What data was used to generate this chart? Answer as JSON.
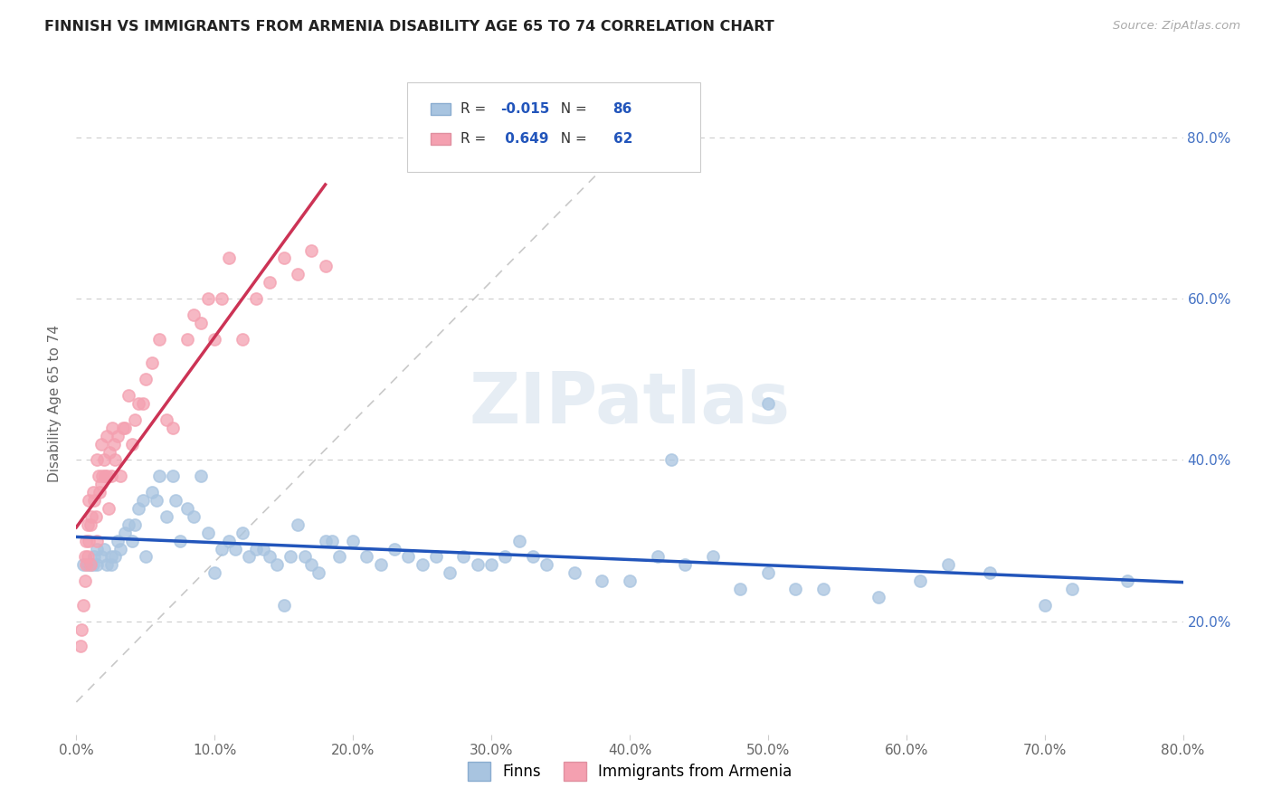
{
  "title": "FINNISH VS IMMIGRANTS FROM ARMENIA DISABILITY AGE 65 TO 74 CORRELATION CHART",
  "source": "Source: ZipAtlas.com",
  "ylabel": "Disability Age 65 to 74",
  "legend_label1": "Finns",
  "legend_label2": "Immigrants from Armenia",
  "r1": -0.015,
  "n1": 86,
  "r2": 0.649,
  "n2": 62,
  "color_finns": "#a8c4e0",
  "color_armenia": "#f4a0b0",
  "line_color_finns": "#2255bb",
  "line_color_armenia": "#cc3355",
  "watermark": "ZIPatlas",
  "xmin": 0.0,
  "xmax": 0.8,
  "ymin": 0.06,
  "ymax": 0.88,
  "yticks": [
    0.2,
    0.4,
    0.6,
    0.8
  ],
  "xticks": [
    0.0,
    0.1,
    0.2,
    0.3,
    0.4,
    0.5,
    0.6,
    0.7,
    0.8
  ],
  "finns_x": [
    0.005,
    0.008,
    0.01,
    0.012,
    0.013,
    0.015,
    0.015,
    0.018,
    0.02,
    0.022,
    0.025,
    0.025,
    0.028,
    0.03,
    0.032,
    0.035,
    0.038,
    0.04,
    0.042,
    0.045,
    0.048,
    0.05,
    0.055,
    0.058,
    0.06,
    0.065,
    0.07,
    0.072,
    0.075,
    0.08,
    0.085,
    0.09,
    0.095,
    0.1,
    0.105,
    0.11,
    0.115,
    0.12,
    0.125,
    0.13,
    0.135,
    0.14,
    0.145,
    0.15,
    0.155,
    0.16,
    0.165,
    0.17,
    0.175,
    0.18,
    0.185,
    0.19,
    0.2,
    0.21,
    0.22,
    0.23,
    0.24,
    0.25,
    0.26,
    0.27,
    0.28,
    0.29,
    0.3,
    0.31,
    0.32,
    0.33,
    0.34,
    0.36,
    0.38,
    0.4,
    0.42,
    0.44,
    0.46,
    0.48,
    0.5,
    0.52,
    0.54,
    0.58,
    0.61,
    0.63,
    0.66,
    0.7,
    0.72,
    0.76,
    0.5,
    0.43
  ],
  "finns_y": [
    0.27,
    0.27,
    0.27,
    0.27,
    0.28,
    0.29,
    0.27,
    0.28,
    0.29,
    0.27,
    0.27,
    0.28,
    0.28,
    0.3,
    0.29,
    0.31,
    0.32,
    0.3,
    0.32,
    0.34,
    0.35,
    0.28,
    0.36,
    0.35,
    0.38,
    0.33,
    0.38,
    0.35,
    0.3,
    0.34,
    0.33,
    0.38,
    0.31,
    0.26,
    0.29,
    0.3,
    0.29,
    0.31,
    0.28,
    0.29,
    0.29,
    0.28,
    0.27,
    0.22,
    0.28,
    0.32,
    0.28,
    0.27,
    0.26,
    0.3,
    0.3,
    0.28,
    0.3,
    0.28,
    0.27,
    0.29,
    0.28,
    0.27,
    0.28,
    0.26,
    0.28,
    0.27,
    0.27,
    0.28,
    0.3,
    0.28,
    0.27,
    0.26,
    0.25,
    0.25,
    0.28,
    0.27,
    0.28,
    0.24,
    0.26,
    0.24,
    0.24,
    0.23,
    0.25,
    0.27,
    0.26,
    0.22,
    0.24,
    0.25,
    0.47,
    0.4
  ],
  "armenia_x": [
    0.003,
    0.004,
    0.005,
    0.006,
    0.006,
    0.007,
    0.007,
    0.008,
    0.008,
    0.009,
    0.009,
    0.01,
    0.01,
    0.011,
    0.012,
    0.013,
    0.014,
    0.015,
    0.015,
    0.016,
    0.017,
    0.018,
    0.018,
    0.019,
    0.02,
    0.021,
    0.022,
    0.022,
    0.023,
    0.024,
    0.025,
    0.026,
    0.027,
    0.028,
    0.03,
    0.032,
    0.034,
    0.035,
    0.038,
    0.04,
    0.042,
    0.045,
    0.048,
    0.05,
    0.055,
    0.06,
    0.065,
    0.07,
    0.08,
    0.085,
    0.09,
    0.095,
    0.1,
    0.105,
    0.11,
    0.12,
    0.13,
    0.14,
    0.15,
    0.16,
    0.17,
    0.18
  ],
  "armenia_y": [
    0.17,
    0.19,
    0.22,
    0.25,
    0.28,
    0.27,
    0.3,
    0.32,
    0.28,
    0.3,
    0.35,
    0.27,
    0.32,
    0.33,
    0.36,
    0.35,
    0.33,
    0.4,
    0.3,
    0.38,
    0.36,
    0.37,
    0.42,
    0.38,
    0.4,
    0.38,
    0.38,
    0.43,
    0.34,
    0.41,
    0.38,
    0.44,
    0.42,
    0.4,
    0.43,
    0.38,
    0.44,
    0.44,
    0.48,
    0.42,
    0.45,
    0.47,
    0.47,
    0.5,
    0.52,
    0.55,
    0.45,
    0.44,
    0.55,
    0.58,
    0.57,
    0.6,
    0.55,
    0.6,
    0.65,
    0.55,
    0.6,
    0.62,
    0.65,
    0.63,
    0.66,
    0.64
  ]
}
